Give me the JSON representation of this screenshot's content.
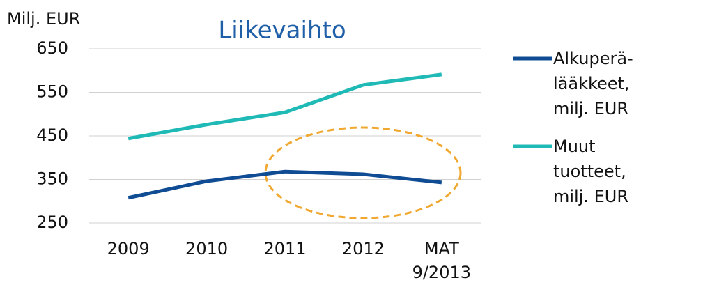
{
  "chart_data": {
    "type": "line",
    "title": "Liikevaihto",
    "y_label": "Milj. EUR",
    "categories": [
      "2009",
      "2010",
      "2011",
      "2012",
      "MAT\n9/2013"
    ],
    "series": [
      {
        "name": "Alkuperä-lääkkeet, milj. EUR",
        "color": "#0f4c94",
        "values": [
          308,
          346,
          368,
          362,
          343
        ]
      },
      {
        "name": "Muut tuotteet, milj. EUR",
        "color": "#1fb9b6",
        "values": [
          444,
          476,
          504,
          567,
          591
        ]
      }
    ],
    "ylim": [
      250,
      650
    ],
    "yticks": [
      250,
      350,
      450,
      550,
      650
    ],
    "grid": true,
    "legend": "right"
  }
}
